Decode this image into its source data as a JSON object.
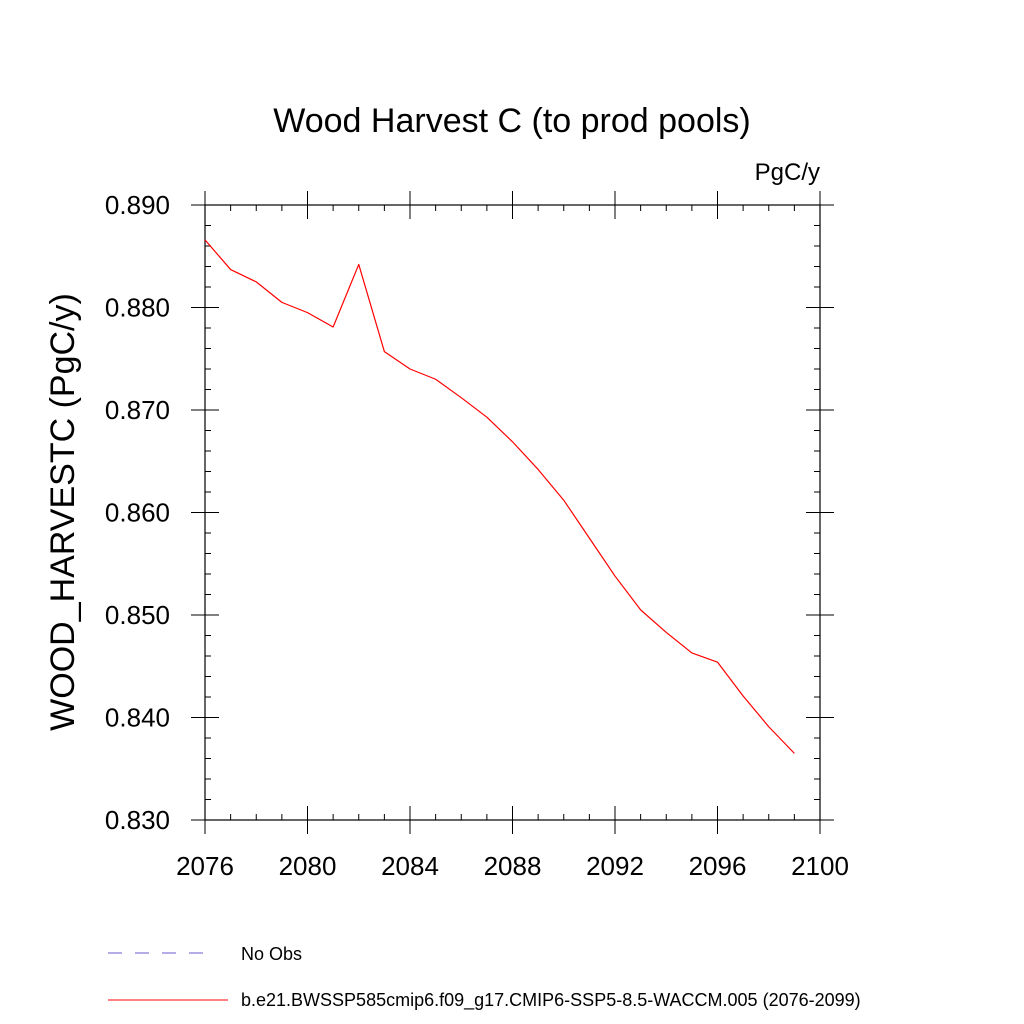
{
  "chart_data": {
    "type": "line",
    "title": "Wood Harvest C (to prod pools)",
    "units_label": "PgC/y",
    "ylabel": "WOOD_HARVESTC  (PgC/y)",
    "xlabel": "",
    "xlim": [
      2076,
      2100
    ],
    "ylim": [
      0.83,
      0.89
    ],
    "x_ticks": [
      2076,
      2080,
      2084,
      2088,
      2092,
      2096,
      2100
    ],
    "x_tick_labels": [
      "2076",
      "2080",
      "2084",
      "2088",
      "2092",
      "2096",
      "2100"
    ],
    "y_ticks": [
      0.83,
      0.84,
      0.85,
      0.86,
      0.87,
      0.88,
      0.89
    ],
    "y_tick_labels": [
      "0.830",
      "0.840",
      "0.850",
      "0.860",
      "0.870",
      "0.880",
      "0.890"
    ],
    "grid": false,
    "series": [
      {
        "name": "b.e21.BWSSP585cmip6.f09_g17.CMIP6-SSP5-8.5-WACCM.005 (2076-2099)",
        "color": "#ff0000",
        "style": "solid",
        "x": [
          2076,
          2077,
          2078,
          2079,
          2080,
          2081,
          2082,
          2083,
          2084,
          2085,
          2086,
          2087,
          2088,
          2089,
          2090,
          2091,
          2092,
          2093,
          2094,
          2095,
          2096,
          2097,
          2098,
          2099
        ],
        "y": [
          0.8866,
          0.8837,
          0.8825,
          0.8805,
          0.8795,
          0.8781,
          0.8842,
          0.8757,
          0.874,
          0.873,
          0.8712,
          0.8693,
          0.8669,
          0.8642,
          0.8612,
          0.8575,
          0.8538,
          0.8505,
          0.8483,
          0.8463,
          0.8454,
          0.8421,
          0.8391,
          0.8365
        ]
      }
    ],
    "legend": [
      {
        "label": "No Obs",
        "color": "#6a5acd",
        "style": "dashed"
      },
      {
        "label": "b.e21.BWSSP585cmip6.f09_g17.CMIP6-SSP5-8.5-WACCM.005 (2076-2099)",
        "color": "#ff0000",
        "style": "solid"
      }
    ],
    "legend_position": "bottom-left"
  }
}
